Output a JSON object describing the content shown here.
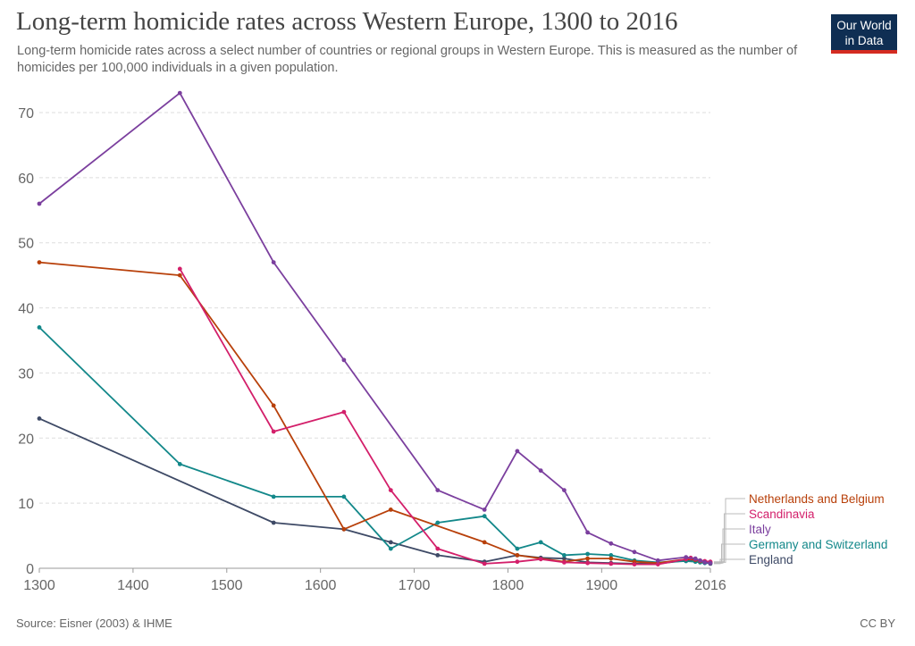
{
  "header": {
    "title": "Long-term homicide rates across Western Europe, 1300 to 2016",
    "subtitle": "Long-term homicide rates across a select number of countries or regional groups in Western Europe. This is measured as the number of homicides per 100,000 individuals in a given population.",
    "logo_line1": "Our World",
    "logo_line2": "in Data"
  },
  "footer": {
    "source": "Source: Eisner (2003) & IHME",
    "license": "CC BY"
  },
  "colors": {
    "Italy": "#7b3f9e",
    "Netherlands and Belgium": "#b8400a",
    "Scandinavia": "#d31f6a",
    "Germany and Switzerland": "#13888a",
    "England": "#3e4a66"
  },
  "chart_data": {
    "type": "line",
    "title": "Long-term homicide rates across Western Europe, 1300 to 2016",
    "xlim": [
      1300,
      2016
    ],
    "ylim": [
      0,
      75
    ],
    "x_ticks": [
      1300,
      1400,
      1500,
      1600,
      1700,
      1800,
      1900,
      2016
    ],
    "y_ticks": [
      0,
      10,
      20,
      30,
      40,
      50,
      60,
      70
    ],
    "grid": true,
    "legend_placement": "right",
    "series": [
      {
        "name": "Italy",
        "points": [
          [
            1300,
            56
          ],
          [
            1450,
            73
          ],
          [
            1550,
            47
          ],
          [
            1625,
            32
          ],
          [
            1725,
            12
          ],
          [
            1775,
            9
          ],
          [
            1810,
            18
          ],
          [
            1835,
            15
          ],
          [
            1860,
            12
          ],
          [
            1885,
            5.5
          ],
          [
            1910,
            3.8
          ],
          [
            1935,
            2.5
          ],
          [
            1960,
            1.2
          ],
          [
            1990,
            1.7
          ],
          [
            2000,
            1.5
          ],
          [
            2005,
            1.2
          ],
          [
            2010,
            0.9
          ],
          [
            2016,
            0.8
          ]
        ]
      },
      {
        "name": "Netherlands and Belgium",
        "points": [
          [
            1300,
            47
          ],
          [
            1450,
            45
          ],
          [
            1550,
            25
          ],
          [
            1625,
            6
          ],
          [
            1675,
            9
          ],
          [
            1775,
            4
          ],
          [
            1810,
            2
          ],
          [
            1860,
            1
          ],
          [
            1885,
            1.5
          ],
          [
            1910,
            1.5
          ],
          [
            1935,
            1
          ],
          [
            1960,
            0.8
          ],
          [
            1990,
            1.4
          ],
          [
            2000,
            1.3
          ],
          [
            2005,
            1.1
          ],
          [
            2010,
            1.0
          ],
          [
            2016,
            0.9
          ]
        ]
      },
      {
        "name": "Scandinavia",
        "points": [
          [
            1450,
            46
          ],
          [
            1550,
            21
          ],
          [
            1625,
            24
          ],
          [
            1675,
            12
          ],
          [
            1725,
            3
          ],
          [
            1775,
            0.7
          ],
          [
            1810,
            1
          ],
          [
            1835,
            1.4
          ],
          [
            1860,
            0.9
          ],
          [
            1885,
            0.8
          ],
          [
            1910,
            0.7
          ],
          [
            1935,
            0.6
          ],
          [
            1960,
            0.6
          ],
          [
            1990,
            1.4
          ],
          [
            1995,
            1.6
          ],
          [
            2000,
            1.4
          ],
          [
            2005,
            1.2
          ],
          [
            2010,
            1.1
          ],
          [
            2016,
            1.0
          ]
        ]
      },
      {
        "name": "Germany and Switzerland",
        "points": [
          [
            1300,
            37
          ],
          [
            1450,
            16
          ],
          [
            1550,
            11
          ],
          [
            1625,
            11
          ],
          [
            1675,
            3
          ],
          [
            1725,
            7
          ],
          [
            1775,
            8
          ],
          [
            1810,
            3
          ],
          [
            1835,
            4
          ],
          [
            1860,
            2
          ],
          [
            1885,
            2.2
          ],
          [
            1910,
            2
          ],
          [
            1935,
            1.2
          ],
          [
            1960,
            0.9
          ],
          [
            1990,
            1.1
          ],
          [
            2000,
            1.0
          ],
          [
            2005,
            0.9
          ],
          [
            2010,
            0.8
          ],
          [
            2016,
            0.8
          ]
        ]
      },
      {
        "name": "England",
        "points": [
          [
            1300,
            23
          ],
          [
            1550,
            7
          ],
          [
            1625,
            6
          ],
          [
            1675,
            4
          ],
          [
            1725,
            2
          ],
          [
            1775,
            1
          ],
          [
            1810,
            2
          ],
          [
            1835,
            1.6
          ],
          [
            1860,
            1.5
          ],
          [
            1885,
            0.9
          ],
          [
            1910,
            0.8
          ],
          [
            1935,
            0.7
          ],
          [
            1960,
            0.7
          ],
          [
            1990,
            1.2
          ],
          [
            2000,
            1.3
          ],
          [
            2005,
            1.1
          ],
          [
            2010,
            0.9
          ],
          [
            2016,
            0.7
          ]
        ]
      }
    ],
    "legend_order": [
      "Netherlands and Belgium",
      "Scandinavia",
      "Italy",
      "Germany and Switzerland",
      "England"
    ]
  }
}
